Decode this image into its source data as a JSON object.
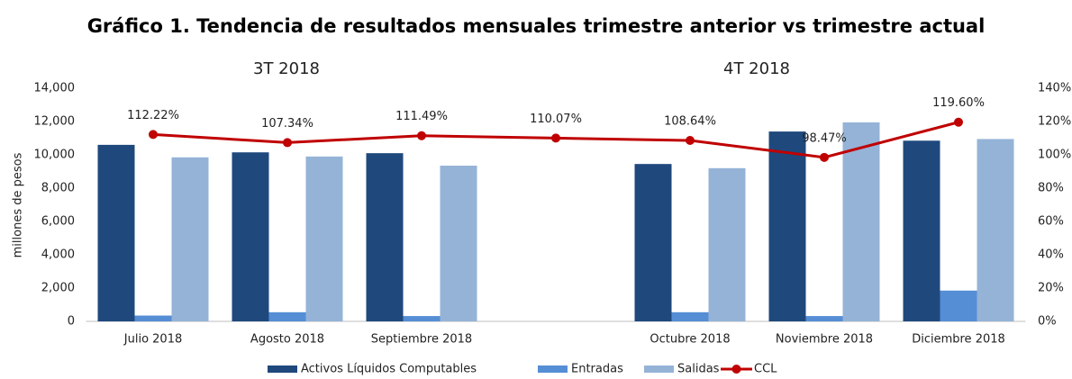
{
  "chart_data": {
    "type": "bar-line",
    "title": "Gráfico 1. Tendencia de resultados mensuales trimestre anterior vs trimestre actual",
    "annotations": [
      "3T 2018",
      "4T 2018"
    ],
    "y_label": "millones de pesos",
    "categories": [
      "Julio 2018",
      "Agosto 2018",
      "Septiembre 2018",
      null,
      "Octubre 2018",
      "Noviembre 2018",
      "Diciembre 2018"
    ],
    "series": [
      {
        "name": "Activos Líquidos Computables",
        "color": "#1f497d",
        "type": "bar",
        "values": [
          10600,
          10150,
          10100,
          null,
          9450,
          11400,
          10850
        ]
      },
      {
        "name": "Entradas",
        "color": "#558ed5",
        "type": "bar",
        "values": [
          350,
          550,
          320,
          null,
          550,
          320,
          1850
        ]
      },
      {
        "name": "Salidas",
        "color": "#95b3d7",
        "type": "bar",
        "values": [
          9850,
          9900,
          9350,
          null,
          9200,
          11950,
          10950
        ]
      },
      {
        "name": "CCL",
        "color": "#c00000",
        "type": "line",
        "axis": "y2",
        "values": [
          112.22,
          107.34,
          111.49,
          110.07,
          108.64,
          98.47,
          119.6
        ],
        "value_labels": [
          "112.22%",
          "107.34%",
          "111.49%",
          "110.07%",
          "108.64%",
          "98.47%",
          "119.60%"
        ]
      }
    ],
    "ylim": [
      0,
      14000
    ],
    "yticks": [
      0,
      {
        "value": 2000,
        "label": "2,000"
      },
      {
        "value": 4000,
        "label": "4,000"
      },
      {
        "value": 6000,
        "label": "6,000"
      },
      {
        "value": 8000,
        "label": "8,000"
      },
      {
        "value": 10000,
        "label": "10,000"
      },
      {
        "value": 12000,
        "label": "12,000"
      },
      {
        "value": 14000,
        "label": "14,000"
      }
    ],
    "y2lim": [
      0,
      140
    ],
    "y2ticks": [
      {
        "value": 0,
        "label": "0%"
      },
      {
        "value": 20,
        "label": "20%"
      },
      {
        "value": 40,
        "label": "40%"
      },
      {
        "value": 60,
        "label": "60%"
      },
      {
        "value": 80,
        "label": "80%"
      },
      {
        "value": 100,
        "label": "100%"
      },
      {
        "value": 120,
        "label": "120%"
      },
      {
        "value": 140,
        "label": "140%"
      }
    ],
    "grid": false,
    "legend": "bottom"
  }
}
